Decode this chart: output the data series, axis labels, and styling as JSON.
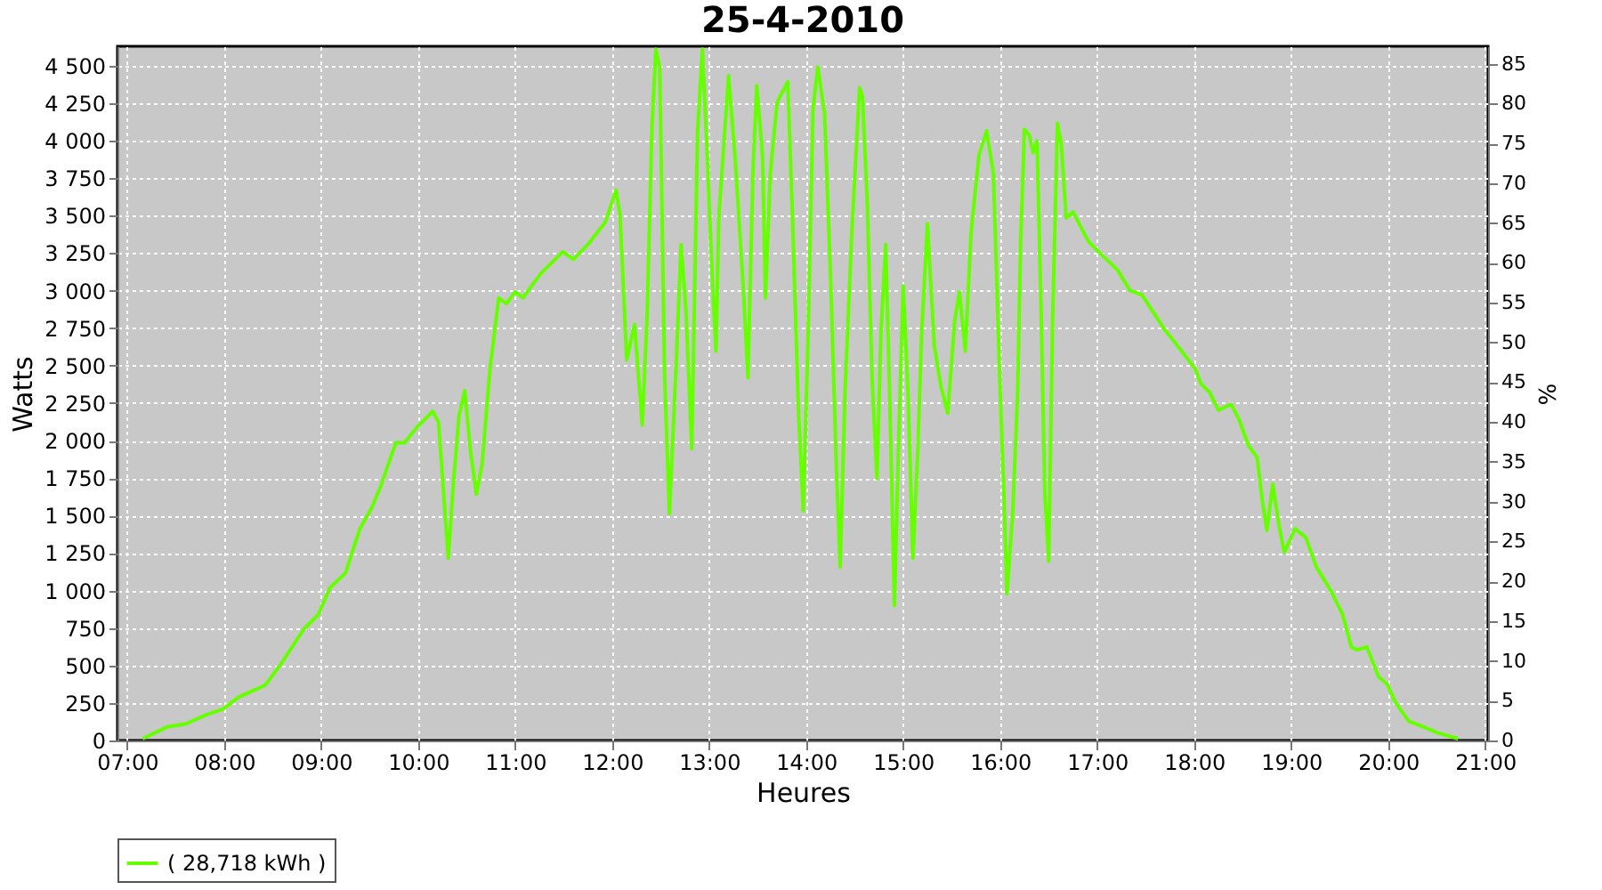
{
  "chart_data": {
    "type": "line",
    "title": "25-4-2010",
    "xlabel": "Heures",
    "ylabel": "Watts",
    "y2label": "%",
    "x": [
      7.16,
      7.41,
      7.6,
      7.81,
      7.99,
      8.15,
      8.42,
      8.58,
      8.82,
      8.97,
      9.09,
      9.25,
      9.4,
      9.52,
      9.61,
      9.77,
      9.86,
      9.98,
      10.15,
      10.21,
      10.27,
      10.31,
      10.36,
      10.42,
      10.48,
      10.54,
      10.6,
      10.66,
      10.74,
      10.83,
      10.91,
      11.0,
      11.08,
      11.26,
      11.49,
      11.6,
      11.75,
      11.93,
      12.04,
      12.08,
      12.15,
      12.23,
      12.31,
      12.36,
      12.41,
      12.45,
      12.49,
      12.54,
      12.59,
      12.66,
      12.71,
      12.76,
      12.82,
      12.88,
      12.93,
      12.98,
      13.03,
      13.07,
      13.1,
      13.2,
      13.27,
      13.35,
      13.4,
      13.45,
      13.49,
      13.55,
      13.58,
      13.63,
      13.7,
      13.81,
      13.86,
      13.92,
      13.97,
      14.02,
      14.07,
      14.12,
      14.19,
      14.25,
      14.31,
      14.35,
      14.4,
      14.47,
      14.55,
      14.58,
      14.63,
      14.68,
      14.73,
      14.77,
      14.82,
      14.86,
      14.91,
      14.95,
      15.0,
      15.05,
      15.1,
      15.15,
      15.19,
      15.25,
      15.32,
      15.39,
      15.46,
      15.53,
      15.58,
      15.64,
      15.7,
      15.78,
      15.86,
      15.93,
      15.99,
      16.04,
      16.07,
      16.13,
      16.18,
      16.21,
      16.25,
      16.3,
      16.34,
      16.38,
      16.42,
      16.46,
      16.5,
      16.54,
      16.59,
      16.63,
      16.68,
      16.75,
      16.91,
      17.03,
      17.21,
      17.34,
      17.46,
      17.7,
      17.88,
      18.01,
      18.07,
      18.16,
      18.25,
      18.38,
      18.46,
      18.56,
      18.65,
      18.7,
      18.75,
      18.81,
      18.88,
      18.93,
      19.04,
      19.15,
      19.26,
      19.41,
      19.53,
      19.62,
      19.68,
      19.78,
      19.9,
      19.99,
      20.08,
      20.21,
      20.36,
      20.51,
      20.72
    ],
    "series": [
      {
        "name": "( 28,718 kWh )",
        "color": "#66ff00",
        "values": [
          12,
          90,
          110,
          170,
          210,
          290,
          367,
          505,
          742,
          840,
          1018,
          1117,
          1413,
          1551,
          1690,
          1986,
          1986,
          2084,
          2195,
          2123,
          1572,
          1216,
          1690,
          2164,
          2333,
          1927,
          1642,
          1847,
          2479,
          2952,
          2913,
          2992,
          2952,
          3111,
          3260,
          3209,
          3308,
          3458,
          3671,
          3505,
          2538,
          2775,
          2104,
          2834,
          4097,
          4610,
          4492,
          2440,
          1512,
          2519,
          3308,
          2874,
          1946,
          4058,
          4610,
          3900,
          3111,
          2597,
          3505,
          4433,
          3861,
          3032,
          2420,
          3782,
          4367,
          3900,
          2952,
          3782,
          4255,
          4394,
          3466,
          2203,
          1531,
          2716,
          4216,
          4492,
          4177,
          3111,
          1847,
          1157,
          2321,
          3387,
          4354,
          4295,
          3585,
          2400,
          1749,
          2716,
          3308,
          2321,
          900,
          1927,
          3032,
          2321,
          1216,
          1927,
          2716,
          3446,
          2637,
          2360,
          2183,
          2795,
          2992,
          2597,
          3387,
          3900,
          4066,
          3782,
          2519,
          1611,
          979,
          1531,
          2321,
          3308,
          4077,
          4038,
          3920,
          3999,
          2913,
          1650,
          1196,
          2795,
          4117,
          3979,
          3485,
          3525,
          3328,
          3249,
          3138,
          3000,
          2973,
          2736,
          2590,
          2479,
          2380,
          2321,
          2203,
          2242,
          2144,
          1966,
          1887,
          1611,
          1401,
          1709,
          1413,
          1255,
          1413,
          1354,
          1157,
          998,
          841,
          624,
          604,
          624,
          426,
          375,
          249,
          130,
          91,
          51,
          12
        ]
      }
    ],
    "xlim": [
      6.9,
      21.03
    ],
    "xticks": [
      {
        "value": 7,
        "label": "07:00"
      },
      {
        "value": 8,
        "label": "08:00"
      },
      {
        "value": 9,
        "label": "09:00"
      },
      {
        "value": 10,
        "label": "10:00"
      },
      {
        "value": 11,
        "label": "11:00"
      },
      {
        "value": 12,
        "label": "12:00"
      },
      {
        "value": 13,
        "label": "13:00"
      },
      {
        "value": 14,
        "label": "14:00"
      },
      {
        "value": 15,
        "label": "15:00"
      },
      {
        "value": 16,
        "label": "16:00"
      },
      {
        "value": 17,
        "label": "17:00"
      },
      {
        "value": 18,
        "label": "18:00"
      },
      {
        "value": 19,
        "label": "19:00"
      },
      {
        "value": 20,
        "label": "20:00"
      },
      {
        "value": 21,
        "label": "21:00"
      }
    ],
    "ylim": [
      0,
      4630
    ],
    "yticks": [
      0,
      250,
      500,
      750,
      {
        "value": 1000,
        "label": "1 000"
      },
      {
        "value": 1250,
        "label": "1 250"
      },
      {
        "value": 1500,
        "label": "1 500"
      },
      {
        "value": 1750,
        "label": "1 750"
      },
      {
        "value": 2000,
        "label": "2 000"
      },
      {
        "value": 2250,
        "label": "2 250"
      },
      {
        "value": 2500,
        "label": "2 500"
      },
      {
        "value": 2750,
        "label": "2 750"
      },
      {
        "value": 3000,
        "label": "3 000"
      },
      {
        "value": 3250,
        "label": "3 250"
      },
      {
        "value": 3500,
        "label": "3 500"
      },
      {
        "value": 3750,
        "label": "3 750"
      },
      {
        "value": 4000,
        "label": "4 000"
      },
      {
        "value": 4250,
        "label": "4 250"
      },
      {
        "value": 4500,
        "label": "4 500"
      }
    ],
    "y2lim": [
      0,
      87.2
    ],
    "y2ticks": [
      0,
      5,
      10,
      15,
      20,
      25,
      30,
      35,
      40,
      45,
      50,
      55,
      60,
      65,
      70,
      75,
      80,
      85
    ],
    "grid": true,
    "legend": "bottom",
    "marker": "none",
    "line_style": "solid"
  }
}
